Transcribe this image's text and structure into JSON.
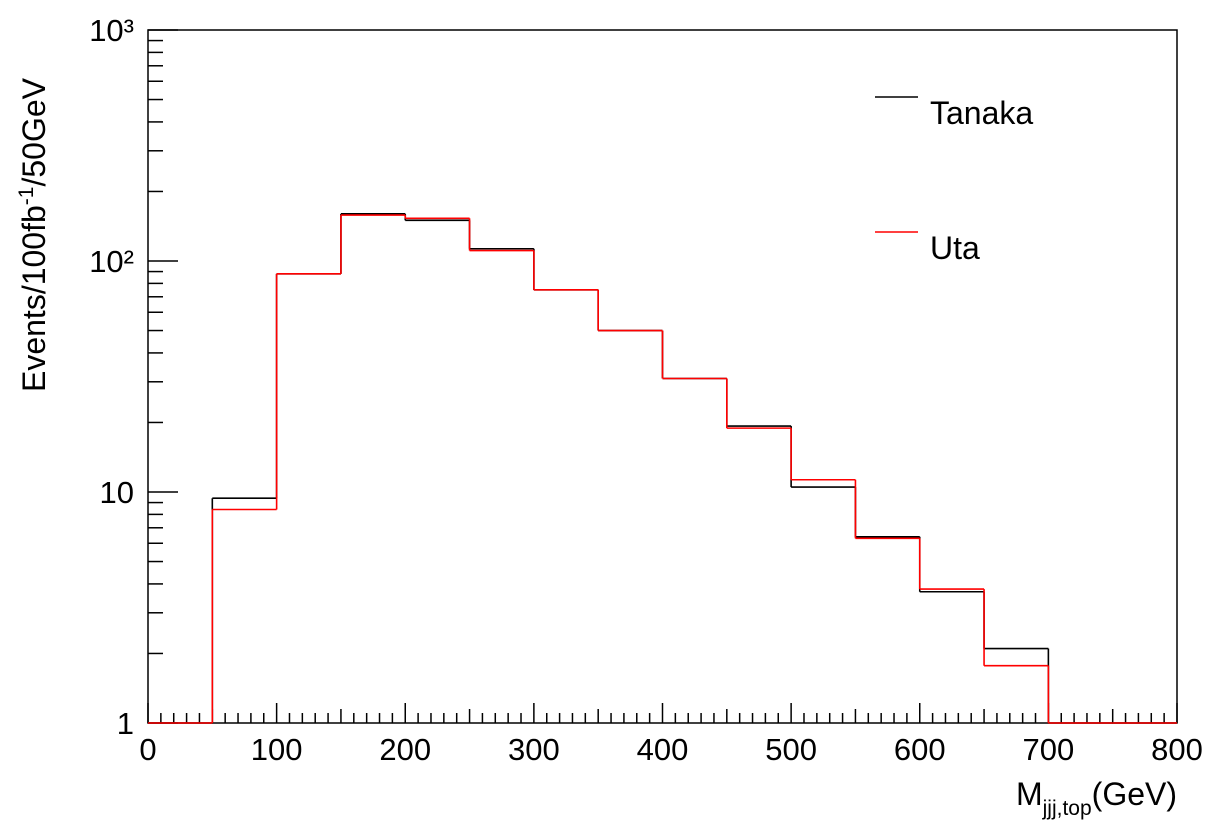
{
  "chart_data": {
    "type": "histogram",
    "xlabel": {
      "main": "M",
      "sub": "jjj,top",
      "unit": "(GeV)"
    },
    "ylabel": {
      "main": "Events/100fb",
      "sup": "-1",
      "rest": "/50GeV"
    },
    "bins": [
      0,
      50,
      100,
      150,
      200,
      250,
      300,
      350,
      400,
      450,
      500,
      550,
      600,
      650,
      700,
      750,
      800
    ],
    "series": [
      {
        "name": "Tanaka",
        "color": "#000000",
        "values": [
          1,
          9.4,
          88,
          160,
          150,
          113,
          75,
          50,
          31,
          19.3,
          10.5,
          6.4,
          3.7,
          2.1,
          1,
          1
        ]
      },
      {
        "name": "Uta",
        "color": "#ff0000",
        "values": [
          1,
          8.4,
          88,
          158,
          153,
          111,
          75,
          50,
          31,
          18.9,
          11.3,
          6.3,
          3.8,
          1.77,
          1,
          1
        ]
      }
    ],
    "xlim": [
      0,
      800
    ],
    "xticks": [
      0,
      100,
      200,
      300,
      400,
      500,
      600,
      700,
      800
    ],
    "ylim": [
      1,
      1000
    ],
    "yticks": [
      1,
      10,
      {
        "value": 100,
        "label": "10²"
      },
      {
        "value": 1000,
        "label": "10³"
      }
    ],
    "ylog": true,
    "grid": false,
    "legend": "upper right"
  }
}
